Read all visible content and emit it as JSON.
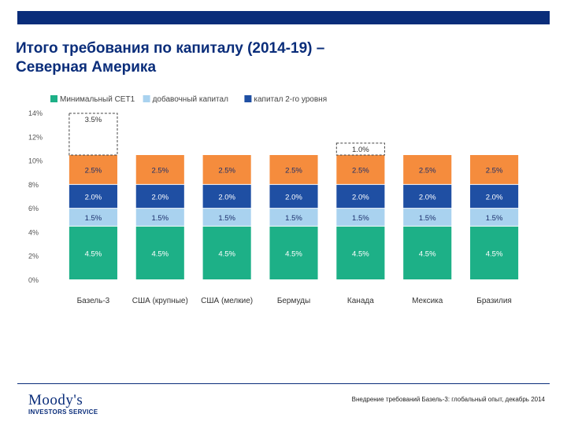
{
  "header": {
    "title_line1": "Итого требования по капиталу (2014-19) –",
    "title_line2": "Северная Америка"
  },
  "footer": {
    "logo_word": "Moody's",
    "logo_sub": "INVESTORS SERVICE",
    "source": "Внедрение требований Базель-3: глобальный опыт, декабрь 2014"
  },
  "colors": {
    "brand": "#0a2d7a",
    "cet1": "#1db087",
    "buffer": "#a9d2ef",
    "tier2": "#1f4fa3",
    "orange": "#f58c3d"
  },
  "chart_data": {
    "type": "bar",
    "stacked": true,
    "categories": [
      "Базель-3",
      "США (крупные)",
      "США (мелкие)",
      "Бермуды",
      "Канада",
      "Мексика",
      "Бразилия"
    ],
    "ylim": [
      0,
      14
    ],
    "yticks": [
      "0%",
      "2%",
      "4%",
      "6%",
      "8%",
      "10%",
      "12%",
      "14%"
    ],
    "legend_position": "top-left",
    "series": [
      {
        "name": "Минимальный CET1",
        "color": "#1db087",
        "label_color": "#ffffff",
        "values": [
          4.5,
          4.5,
          4.5,
          4.5,
          4.5,
          4.5,
          4.5
        ],
        "labels": [
          "4.5%",
          "4.5%",
          "4.5%",
          "4.5%",
          "4.5%",
          "4.5%",
          "4.5%"
        ]
      },
      {
        "name": "добавочный капитал",
        "color": "#a9d2ef",
        "label_color": "#1c2f6b",
        "values": [
          1.5,
          1.5,
          1.5,
          1.5,
          1.5,
          1.5,
          1.5
        ],
        "labels": [
          "1.5%",
          "1.5%",
          "1.5%",
          "1.5%",
          "1.5%",
          "1.5%",
          "1.5%"
        ]
      },
      {
        "name": "капитал 2-го уровня",
        "color": "#1f4fa3",
        "label_color": "#ffffff",
        "values": [
          2.0,
          2.0,
          2.0,
          2.0,
          2.0,
          2.0,
          2.0
        ],
        "labels": [
          "2.0%",
          "2.0%",
          "2.0%",
          "2.0%",
          "2.0%",
          "2.0%",
          "2.0%"
        ]
      },
      {
        "name": "",
        "color": "#f58c3d",
        "label_color": "#1c2f6b",
        "in_legend": false,
        "values": [
          2.5,
          2.5,
          2.5,
          2.5,
          2.5,
          2.5,
          2.5
        ],
        "labels": [
          "2.5%",
          "2.5%",
          "2.5%",
          "2.5%",
          "2.5%",
          "2.5%",
          "2.5%"
        ]
      },
      {
        "name": "",
        "color": "#ffffff",
        "label_color": "#333333",
        "dashed": true,
        "in_legend": false,
        "values": [
          3.5,
          0,
          0,
          0,
          1.0,
          0,
          0
        ],
        "labels": [
          "3.5%",
          "",
          "",
          "",
          "1.0%",
          "",
          ""
        ]
      }
    ]
  }
}
